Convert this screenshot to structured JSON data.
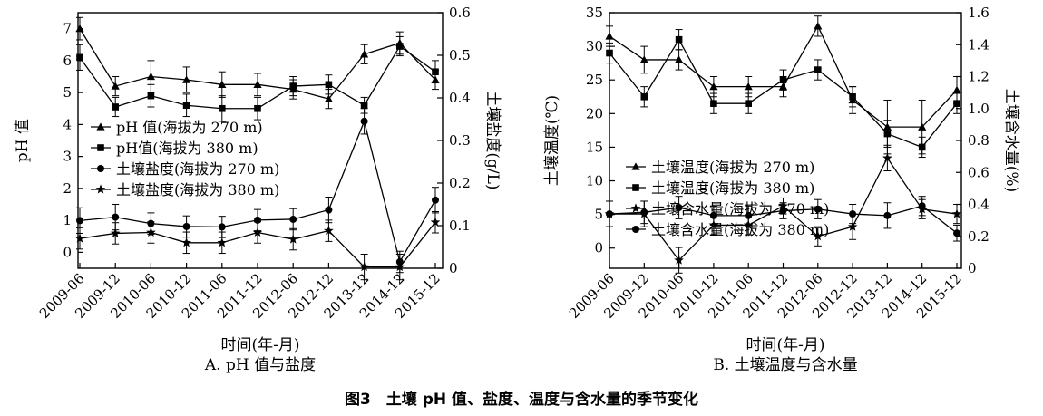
{
  "caption": "图3　土壤 pH 值、盐度、温度与含水量的季节变化",
  "chart_data": [
    {
      "type": "line",
      "panel_label": "A. pH 值与盐度",
      "xlabel": "时间(年-月)",
      "ylabel_left": "pH 值",
      "ylabel_right": "土壤盐度(g/L)",
      "categories": [
        "2009-06",
        "2009-12",
        "2010-06",
        "2010-12",
        "2011-06",
        "2011-12",
        "2012-06",
        "2012-12",
        "2013-12",
        "2014-12",
        "2015-12"
      ],
      "ylim_left": [
        -0.5,
        7.5
      ],
      "yticks_left": [
        0,
        1,
        2,
        3,
        4,
        5,
        6,
        7
      ],
      "ylim_right": [
        0,
        0.6
      ],
      "yticks_right": [
        "0",
        "0.1",
        "0.2",
        "0.3",
        "0.4",
        "0.5",
        "0.6"
      ],
      "legend_position": "middle-left",
      "series": [
        {
          "name": "pH 值(海拔为 270 m)",
          "axis": "left",
          "marker": "triangle",
          "values": [
            7.0,
            5.2,
            5.5,
            5.4,
            5.25,
            5.25,
            5.1,
            4.8,
            6.2,
            6.55,
            5.4
          ],
          "errors": [
            0.35,
            0.3,
            0.5,
            0.4,
            0.4,
            0.35,
            0.3,
            0.3,
            0.3,
            0.35,
            0.3
          ]
        },
        {
          "name": "pH值(海拔为 380 m)",
          "axis": "left",
          "marker": "square",
          "values": [
            6.1,
            4.55,
            4.9,
            4.6,
            4.5,
            4.5,
            5.2,
            5.25,
            4.6,
            6.45,
            5.65
          ],
          "errors": [
            0.4,
            0.3,
            0.35,
            0.35,
            0.4,
            0.35,
            0.3,
            0.3,
            0.25,
            0.3,
            0.35
          ]
        },
        {
          "name": "土壤盐度(海拔为 270 m)",
          "axis": "right",
          "marker": "circle",
          "values": [
            0.112,
            0.12,
            0.105,
            0.098,
            0.097,
            0.113,
            0.115,
            0.137,
            0.345,
            0.015,
            0.16
          ],
          "errors": [
            0.03,
            0.03,
            0.025,
            0.025,
            0.025,
            0.025,
            0.025,
            0.03,
            0.03,
            0.025,
            0.03
          ]
        },
        {
          "name": "土壤盐度(海拔为 380 m)",
          "axis": "right",
          "marker": "star",
          "values": [
            0.07,
            0.082,
            0.084,
            0.06,
            0.06,
            0.084,
            0.068,
            0.088,
            0.003,
            0.003,
            0.108
          ],
          "errors": [
            0.025,
            0.025,
            0.025,
            0.025,
            0.025,
            0.025,
            0.025,
            0.025,
            0.03,
            0.03,
            0.025
          ]
        }
      ]
    },
    {
      "type": "line",
      "panel_label": "B. 土壤温度与含水量",
      "xlabel": "时间(年-月)",
      "ylabel_left": "土壤温度(℃)",
      "ylabel_right": "土壤含水量(%)",
      "categories": [
        "2009-06",
        "2009-12",
        "2010-06",
        "2010-12",
        "2011-06",
        "2011-12",
        "2012-06",
        "2012-12",
        "2013-12",
        "2014-12",
        "2015-12"
      ],
      "ylim_left": [
        -3,
        35
      ],
      "yticks_left": [
        0,
        5,
        10,
        15,
        20,
        25,
        30,
        35
      ],
      "ylim_right": [
        0,
        1.6
      ],
      "yticks_right": [
        "0",
        "0.2",
        "0.4",
        "0.6",
        "0.8",
        "1.0",
        "1.2",
        "1.4",
        "1.6"
      ],
      "legend_position": "middle-left",
      "series": [
        {
          "name": "土壤温度(海拔为 270 m)",
          "axis": "left",
          "marker": "triangle",
          "values": [
            31.5,
            28.0,
            28.0,
            24.0,
            24.0,
            24.0,
            33.0,
            22.0,
            18.0,
            18.0,
            23.5
          ],
          "errors": [
            1.5,
            2.0,
            1.5,
            1.5,
            1.5,
            1.5,
            1.5,
            2.0,
            4.0,
            4.0,
            2.0
          ]
        },
        {
          "name": "土壤温度(海拔为 380 m)",
          "axis": "left",
          "marker": "square",
          "values": [
            29.0,
            22.5,
            31.0,
            21.5,
            21.5,
            25.0,
            26.5,
            22.5,
            17.0,
            15.0,
            21.5
          ],
          "errors": [
            1.5,
            1.5,
            1.5,
            1.5,
            1.5,
            1.5,
            1.5,
            1.5,
            2.0,
            1.5,
            1.5
          ]
        },
        {
          "name": "土壤含水量(海拔为 270 m)",
          "axis": "right",
          "marker": "star",
          "values": [
            0.34,
            0.34,
            0.05,
            0.27,
            0.27,
            0.39,
            0.2,
            0.26,
            0.69,
            0.37,
            0.34
          ],
          "errors": [
            0.08,
            0.08,
            0.08,
            0.06,
            0.06,
            0.05,
            0.06,
            0.08,
            0.08,
            0.06,
            0.06
          ]
        },
        {
          "name": "土壤含水量(海拔为 380 m)",
          "axis": "right",
          "marker": "circle",
          "values": [
            0.34,
            0.35,
            0.38,
            0.33,
            0.33,
            0.36,
            0.37,
            0.34,
            0.33,
            0.39,
            0.22
          ],
          "errors": [
            0.08,
            0.07,
            0.07,
            0.06,
            0.06,
            0.05,
            0.06,
            0.06,
            0.08,
            0.06,
            0.05
          ]
        }
      ]
    }
  ]
}
